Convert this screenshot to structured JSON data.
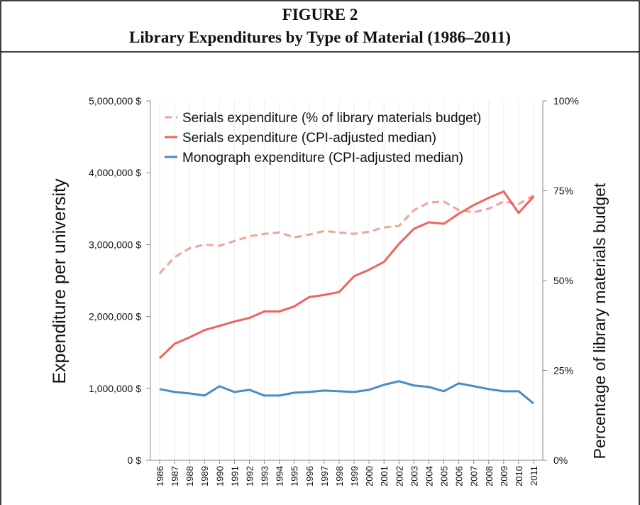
{
  "chart_data": {
    "type": "line",
    "figure_label": "FIGURE 2",
    "title": "Library Expenditures by Type of Material (1986–2011)",
    "y_label": "Expenditure per university",
    "y2_label": "Percentage of library materials budget",
    "categories": [
      "1986",
      "1987",
      "1988",
      "1989",
      "1990",
      "1991",
      "1992",
      "1993",
      "1994",
      "1995",
      "1996",
      "1997",
      "1998",
      "1999",
      "2000",
      "2001",
      "2002",
      "2003",
      "2004",
      "2005",
      "2006",
      "2007",
      "2008",
      "2009",
      "2010",
      "2011"
    ],
    "ylim": [
      0,
      5000000
    ],
    "yticks": [
      {
        "value": 0,
        "label": "0 $"
      },
      {
        "value": 1000000,
        "label": "1,000,000 $"
      },
      {
        "value": 2000000,
        "label": "2,000,000 $"
      },
      {
        "value": 3000000,
        "label": "3,000,000 $"
      },
      {
        "value": 4000000,
        "label": "4,000,000 $"
      },
      {
        "value": 5000000,
        "label": "5,000,000 $"
      }
    ],
    "y2lim": [
      0,
      100
    ],
    "y2ticks": [
      {
        "value": 0,
        "label": "0%"
      },
      {
        "value": 25,
        "label": "25%"
      },
      {
        "value": 50,
        "label": "50%"
      },
      {
        "value": 75,
        "label": "75%"
      },
      {
        "value": 100,
        "label": "100%"
      }
    ],
    "grid": true,
    "legend": "upper left",
    "series": [
      {
        "name": "Serials expenditure (% of library materials budget)",
        "color": "#f4a29b",
        "dashed": true,
        "axis": "y2",
        "values": [
          52,
          56.5,
          59,
          60,
          59.7,
          61,
          62.3,
          63,
          63.4,
          62,
          62.8,
          63.8,
          63.4,
          63,
          63.6,
          64.8,
          65.2,
          69.6,
          71.7,
          72,
          69.6,
          69,
          70,
          72,
          71.3,
          73.7
        ]
      },
      {
        "name": "Serials expenditure (CPI-adjusted median)",
        "color": "#f0645a",
        "values": [
          1420000,
          1620000,
          1710000,
          1810000,
          1870000,
          1930000,
          1980000,
          2070000,
          2070000,
          2140000,
          2270000,
          2300000,
          2340000,
          2560000,
          2650000,
          2760000,
          3010000,
          3220000,
          3310000,
          3290000,
          3430000,
          3550000,
          3650000,
          3740000,
          3440000,
          3670000
        ]
      },
      {
        "name": "Monograph expenditure (CPI-adjusted median)",
        "color": "#4a8cc4",
        "values": [
          990000,
          950000,
          930000,
          900000,
          1030000,
          950000,
          980000,
          900000,
          900000,
          940000,
          950000,
          970000,
          960000,
          950000,
          980000,
          1050000,
          1100000,
          1040000,
          1020000,
          960000,
          1070000,
          1030000,
          990000,
          960000,
          960000,
          790000
        ]
      }
    ]
  }
}
